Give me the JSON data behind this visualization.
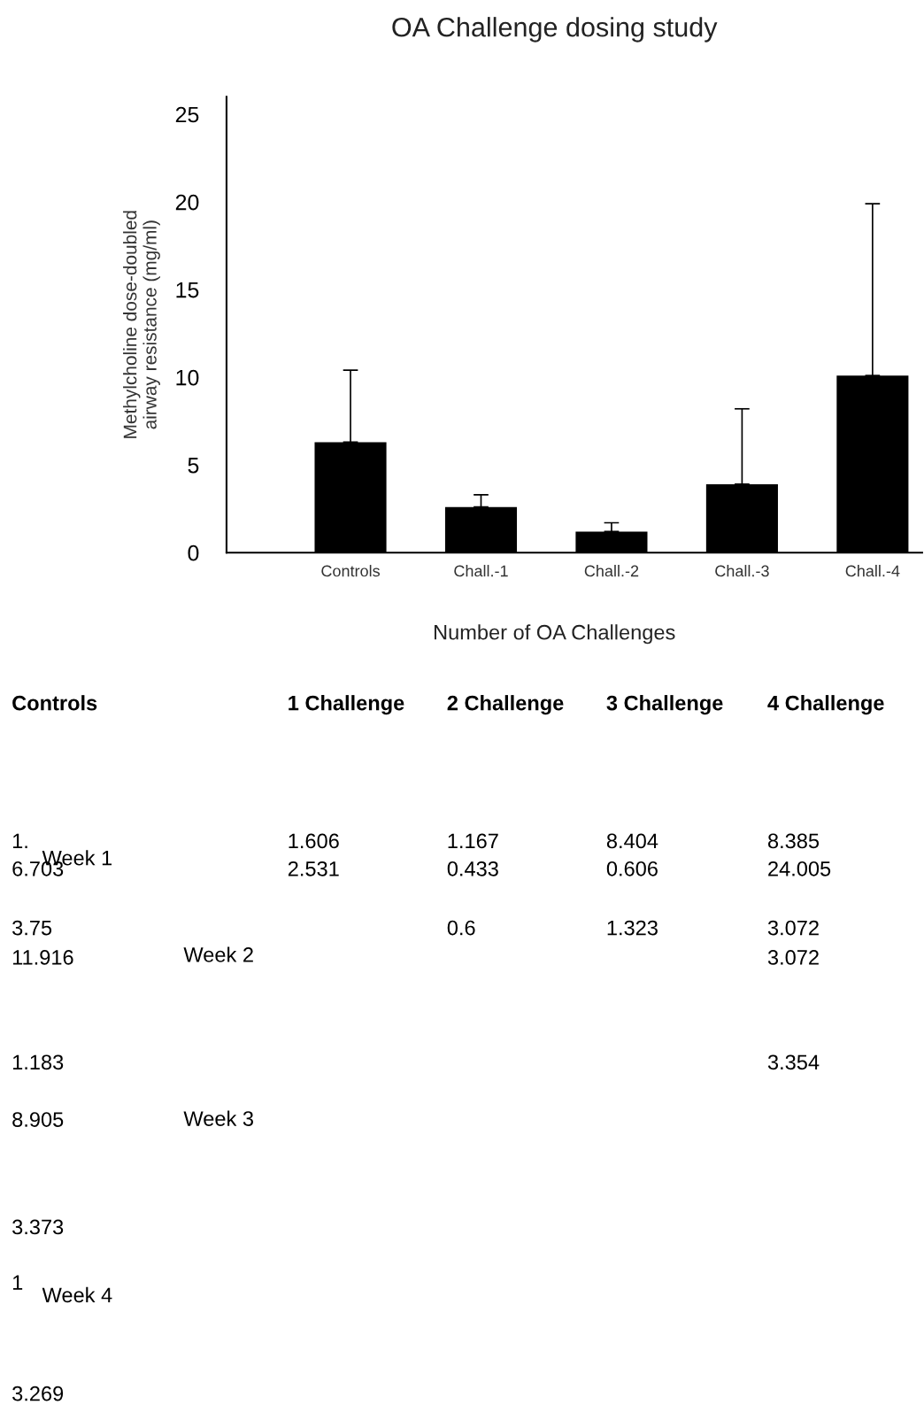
{
  "chart_data": {
    "type": "bar",
    "title": "OA Challenge dosing study",
    "xlabel": "Number of OA Challenges",
    "ylabel": "Methylcholine dose-doubled\nairway resistance (mg/ml)",
    "categories": [
      "Controls",
      "Chall.-1",
      "Chall.-2",
      "Chall.-3",
      "Chall.-4"
    ],
    "values": [
      6.3,
      2.6,
      1.2,
      3.9,
      10.1
    ],
    "color": "#000000",
    "errors": [
      [
        6.3,
        10.4
      ],
      [
        2.6,
        3.3
      ],
      [
        1.2,
        1.7
      ],
      [
        3.9,
        8.2
      ],
      [
        10.1,
        19.9
      ]
    ],
    "ylim": [
      0,
      26
    ],
    "yticks": [
      0,
      5,
      10,
      15,
      20,
      25
    ],
    "grid": false,
    "legend": false,
    "annotations": [
      "Controls",
      "1 Challenge",
      "2 Challenge",
      "3 Challenge",
      "4 Challenge",
      "1.",
      "Week 1",
      "6.703",
      "1.606",
      "2.531",
      "1.167",
      "0.433",
      "8.404",
      "0.606",
      "8.385",
      "24.005",
      "3.75",
      "11.916",
      "Week 2",
      "0.6",
      "1.323",
      "3.072",
      "3.072",
      "1.183",
      "3.354",
      "8.905",
      "Week 3",
      "3.373",
      "1",
      "Week 4",
      "3.269"
    ]
  }
}
